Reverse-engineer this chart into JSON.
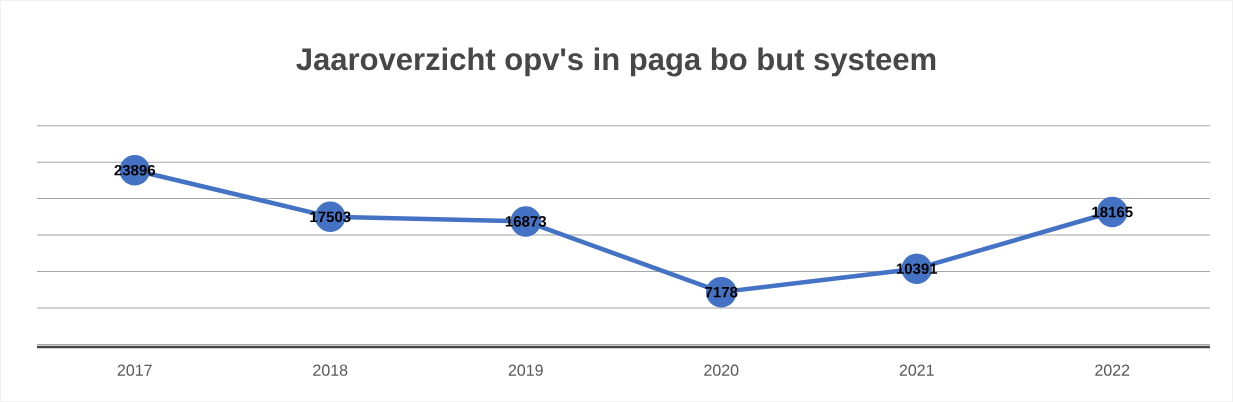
{
  "chart_data": {
    "type": "line",
    "title": "Jaaroverzicht opv's in paga bo but systeem",
    "categories": [
      "2017",
      "2018",
      "2019",
      "2020",
      "2021",
      "2022"
    ],
    "values": [
      23896,
      17503,
      16873,
      7178,
      10391,
      18165
    ],
    "color": "#4472c4",
    "marker": "circle",
    "line_style": "solid",
    "data_labels": true,
    "grid": "y",
    "tick_labels": "x"
  }
}
